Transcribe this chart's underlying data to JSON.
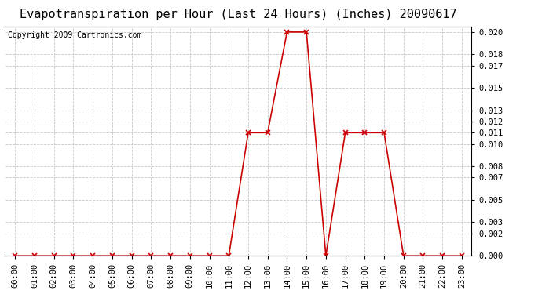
{
  "title": "Evapotranspiration per Hour (Last 24 Hours) (Inches) 20090617",
  "copyright": "Copyright 2009 Cartronics.com",
  "x_labels": [
    "00:00",
    "01:00",
    "02:00",
    "03:00",
    "04:00",
    "05:00",
    "06:00",
    "07:00",
    "08:00",
    "09:00",
    "10:00",
    "11:00",
    "12:00",
    "13:00",
    "14:00",
    "15:00",
    "16:00",
    "17:00",
    "18:00",
    "19:00",
    "20:00",
    "21:00",
    "22:00",
    "23:00"
  ],
  "y_values": [
    0.0,
    0.0,
    0.0,
    0.0,
    0.0,
    0.0,
    0.0,
    0.0,
    0.0,
    0.0,
    0.0,
    0.0,
    0.011,
    0.011,
    0.02,
    0.02,
    0.0,
    0.011,
    0.011,
    0.011,
    0.0,
    0.0,
    0.0,
    0.0
  ],
  "line_color": "#cc0000",
  "marker": "x",
  "marker_color": "#cc0000",
  "background_color": "#ffffff",
  "grid_color": "#c8c8c8",
  "ylim": [
    0.0,
    0.0205
  ],
  "yticks": [
    0.0,
    0.002,
    0.003,
    0.005,
    0.007,
    0.008,
    0.01,
    0.011,
    0.012,
    0.013,
    0.015,
    0.017,
    0.018,
    0.02
  ],
  "title_fontsize": 11,
  "copyright_fontsize": 7,
  "tick_fontsize": 7.5
}
